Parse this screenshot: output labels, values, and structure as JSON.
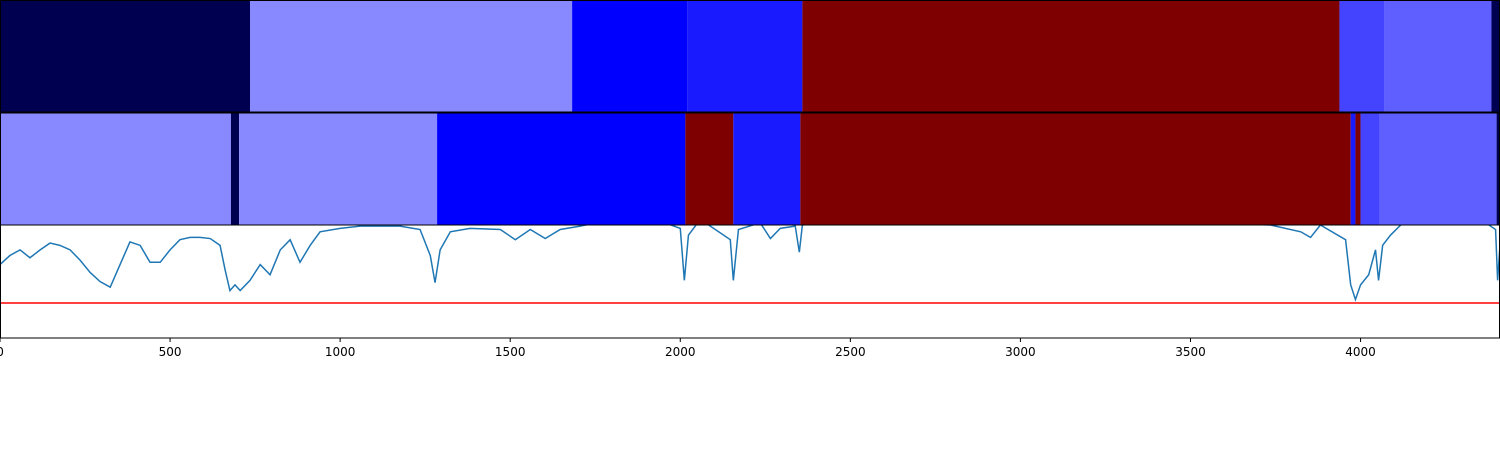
{
  "chart_data": [
    {
      "type": "segments",
      "xlim": [
        0,
        4410
      ],
      "bins": [
        0,
        735,
        1682,
        2020,
        2359,
        3938,
        4071,
        4385,
        4410
      ],
      "colors": [
        "#000050",
        "#8888ff",
        "#0000ff",
        "#1a1aff",
        "#7f0000",
        "#4444ff",
        "#5f5fff",
        "#000050"
      ]
    },
    {
      "type": "segments",
      "xlim": [
        0,
        4410
      ],
      "bins": [
        0,
        679,
        703,
        1285,
        2015,
        2156,
        2353,
        3971,
        3985,
        4000,
        4056,
        4400,
        4410
      ],
      "colors": [
        "#8888ff",
        "#000050",
        "#8888ff",
        "#0000ff",
        "#7f0000",
        "#1a1aff",
        "#7f0000",
        "#1a1aff",
        "#7f0000",
        "#4444ff",
        "#5f5fff",
        "#000050"
      ]
    },
    {
      "type": "line",
      "xlim": [
        0,
        4410
      ],
      "ylim": [
        0,
        1
      ],
      "xticks": [
        0,
        500,
        1000,
        1500,
        2000,
        2500,
        3000,
        3500,
        4000
      ],
      "color": "#1f77b4",
      "threshold": {
        "value": 0.31,
        "color": "red"
      },
      "x": [
        0,
        29,
        59,
        88,
        118,
        147,
        176,
        206,
        235,
        265,
        294,
        324,
        353,
        382,
        412,
        441,
        471,
        500,
        529,
        559,
        588,
        618,
        647,
        662,
        676,
        691,
        706,
        735,
        765,
        794,
        824,
        853,
        882,
        912,
        941,
        1000,
        1059,
        1176,
        1235,
        1265,
        1279,
        1294,
        1324,
        1382,
        1471,
        1515,
        1559,
        1603,
        1647,
        1706,
        1882,
        2000,
        2012,
        2024,
        2059,
        2147,
        2156,
        2171,
        2235,
        2265,
        2294,
        2338,
        2350,
        2359,
        2647,
        3735,
        3824,
        3853,
        3882,
        3956,
        3971,
        3985,
        4000,
        4024,
        4044,
        4053,
        4065,
        4088,
        4118,
        4265,
        4353,
        4397,
        4403,
        4410
      ],
      "values": [
        0.65,
        0.73,
        0.78,
        0.71,
        0.78,
        0.84,
        0.82,
        0.78,
        0.69,
        0.58,
        0.5,
        0.45,
        0.65,
        0.85,
        0.82,
        0.67,
        0.67,
        0.78,
        0.87,
        0.89,
        0.89,
        0.88,
        0.82,
        0.6,
        0.42,
        0.47,
        0.42,
        0.51,
        0.65,
        0.56,
        0.78,
        0.87,
        0.67,
        0.82,
        0.94,
        0.97,
        0.99,
        0.99,
        0.96,
        0.73,
        0.49,
        0.78,
        0.94,
        0.97,
        0.96,
        0.87,
        0.96,
        0.88,
        0.96,
        0.99,
        1.1,
        0.97,
        0.51,
        0.91,
        1.05,
        0.87,
        0.51,
        0.96,
        1.02,
        0.88,
        0.97,
        0.99,
        0.76,
        1.0,
        1.1,
        1.0,
        0.94,
        0.89,
        1.0,
        0.87,
        0.47,
        0.34,
        0.47,
        0.56,
        0.78,
        0.51,
        0.82,
        0.91,
        1.0,
        1.1,
        1.05,
        0.96,
        0.51,
        0.82
      ]
    }
  ]
}
